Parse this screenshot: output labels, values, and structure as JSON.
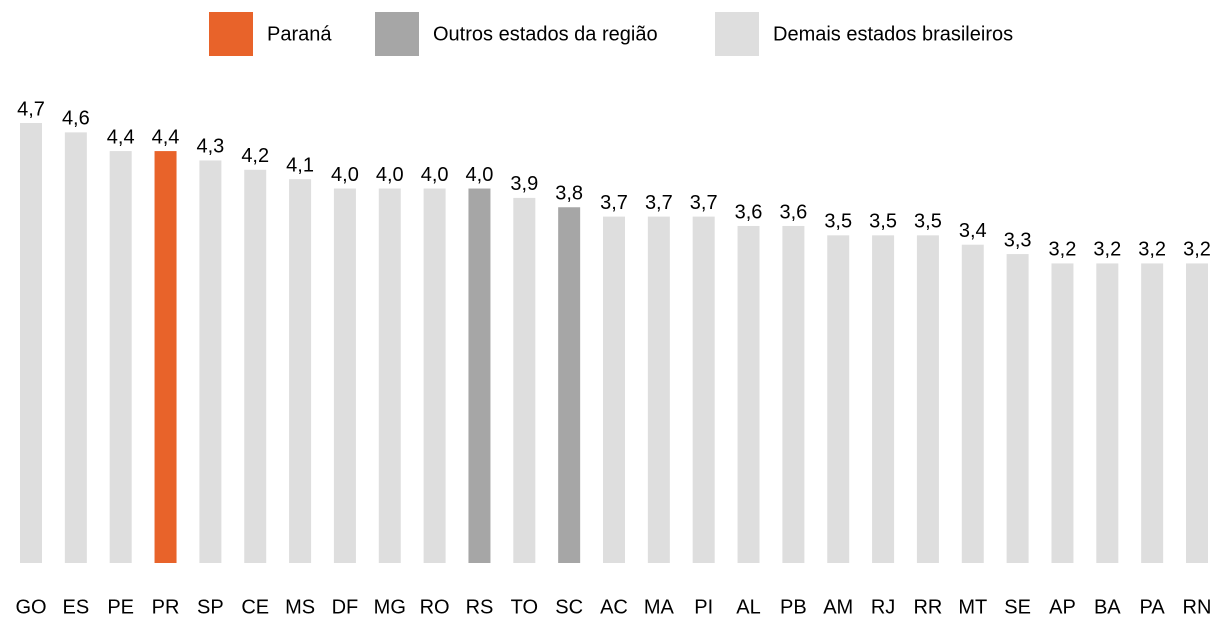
{
  "chart_data": {
    "type": "bar",
    "legend": [
      {
        "name": "Paraná",
        "color": "#e8632a"
      },
      {
        "name": "Outros estados da região",
        "color": "#a6a6a6"
      },
      {
        "name": "Demais estados brasileiros",
        "color": "#dedede"
      }
    ],
    "categories": [
      "GO",
      "ES",
      "PE",
      "PR",
      "SP",
      "CE",
      "MS",
      "DF",
      "MG",
      "RO",
      "RS",
      "TO",
      "SC",
      "AC",
      "MA",
      "PI",
      "AL",
      "PB",
      "AM",
      "RJ",
      "RR",
      "MT",
      "SE",
      "AP",
      "BA",
      "PA",
      "RN"
    ],
    "values": [
      4.7,
      4.6,
      4.4,
      4.4,
      4.3,
      4.2,
      4.1,
      4.0,
      4.0,
      4.0,
      4.0,
      3.9,
      3.8,
      3.7,
      3.7,
      3.7,
      3.6,
      3.6,
      3.5,
      3.5,
      3.5,
      3.4,
      3.3,
      3.2,
      3.2,
      3.2,
      3.2
    ],
    "value_labels": [
      "4,7",
      "4,6",
      "4,4",
      "4,4",
      "4,3",
      "4,2",
      "4,1",
      "4,0",
      "4,0",
      "4,0",
      "4,0",
      "3,9",
      "3,8",
      "3,7",
      "3,7",
      "3,7",
      "3,6",
      "3,6",
      "3,5",
      "3,5",
      "3,5",
      "3,4",
      "3,3",
      "3,2",
      "3,2",
      "3,2",
      "3,2"
    ],
    "colors": [
      "#dedede",
      "#dedede",
      "#dedede",
      "#e8632a",
      "#dedede",
      "#dedede",
      "#dedede",
      "#dedede",
      "#dedede",
      "#dedede",
      "#a6a6a6",
      "#dedede",
      "#a6a6a6",
      "#dedede",
      "#dedede",
      "#dedede",
      "#dedede",
      "#dedede",
      "#dedede",
      "#dedede",
      "#dedede",
      "#dedede",
      "#dedede",
      "#dedede",
      "#dedede",
      "#dedede",
      "#dedede"
    ]
  }
}
